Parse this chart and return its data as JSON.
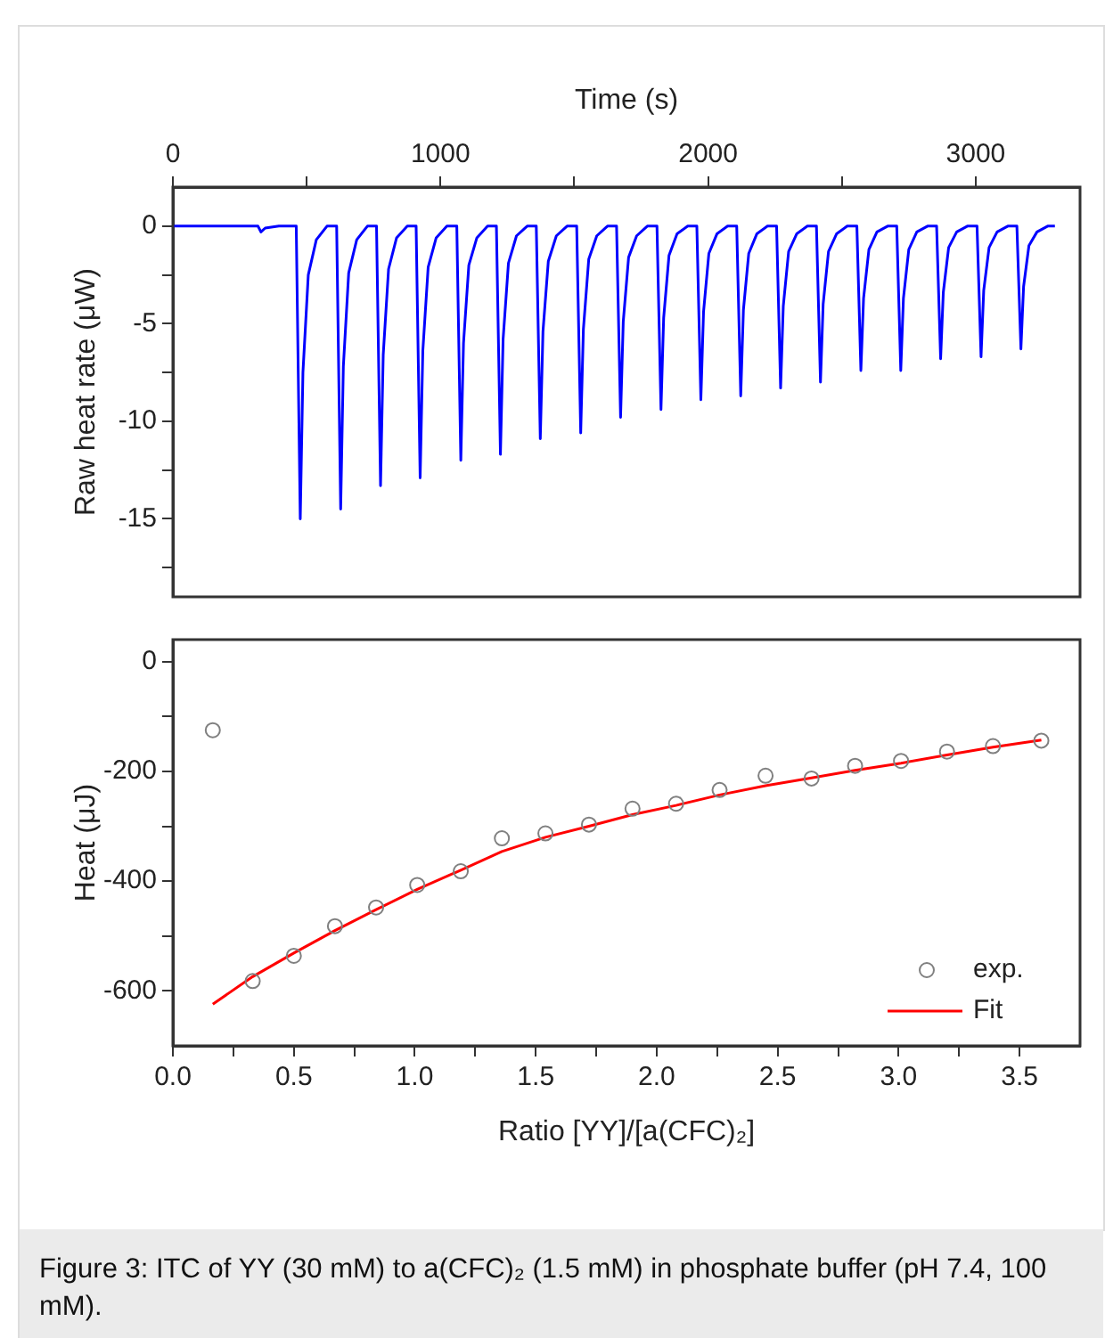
{
  "chart_data": [
    {
      "type": "line",
      "xlabel": "Time (s)",
      "ylabel": "Raw heat rate (μW)",
      "xlim": [
        0,
        3390
      ],
      "xticks": [
        0,
        {
          "value": 500,
          "label": null
        },
        1000,
        {
          "value": 1500,
          "label": null
        },
        2000,
        {
          "value": 2500,
          "label": null
        },
        3000
      ],
      "ylim": [
        -19,
        2
      ],
      "yticks": [
        0,
        {
          "value": -2.5,
          "label": null
        },
        -5,
        {
          "value": -7.5,
          "label": null
        },
        -10,
        {
          "value": -12.5,
          "label": null
        },
        -15,
        {
          "value": -17.5,
          "label": null
        }
      ],
      "grid": false,
      "legend": false,
      "series": [
        {
          "color": "#0000ff",
          "x": [
            0,
            318,
            329,
            345,
            396,
            461,
            476,
            486,
            506,
            536,
            576,
            612,
            627,
            637,
            657,
            687,
            727,
            761,
            776,
            786,
            806,
            836,
            876,
            909,
            924,
            934,
            954,
            984,
            1024,
            1061,
            1076,
            1086,
            1106,
            1136,
            1176,
            1209,
            1224,
            1234,
            1254,
            1284,
            1324,
            1358,
            1373,
            1383,
            1403,
            1433,
            1473,
            1509,
            1524,
            1534,
            1554,
            1584,
            1624,
            1658,
            1673,
            1683,
            1703,
            1733,
            1773,
            1809,
            1824,
            1834,
            1854,
            1884,
            1924,
            1958,
            1973,
            1983,
            2003,
            2033,
            2073,
            2107,
            2122,
            2132,
            2152,
            2182,
            2222,
            2256,
            2271,
            2281,
            2301,
            2331,
            2371,
            2405,
            2420,
            2430,
            2450,
            2480,
            2520,
            2556,
            2571,
            2581,
            2601,
            2631,
            2671,
            2705,
            2720,
            2730,
            2750,
            2780,
            2820,
            2854,
            2869,
            2879,
            2899,
            2929,
            2969,
            3005,
            3020,
            3030,
            3050,
            3080,
            3120,
            3154,
            3169,
            3179,
            3199,
            3229,
            3269,
            3296
          ],
          "values": [
            0,
            0,
            -0.3,
            -0.1,
            0,
            0,
            -15.0,
            -7.5,
            -2.5,
            -0.7,
            0,
            0,
            -14.5,
            -7.2,
            -2.4,
            -0.7,
            0,
            0,
            -13.3,
            -6.6,
            -2.2,
            -0.6,
            0,
            0,
            -12.9,
            -6.4,
            -2.1,
            -0.6,
            0,
            0,
            -12.0,
            -6.0,
            -2.0,
            -0.6,
            0,
            0,
            -11.7,
            -5.8,
            -1.9,
            -0.5,
            0,
            0,
            -10.9,
            -5.4,
            -1.8,
            -0.5,
            0,
            0,
            -10.6,
            -5.3,
            -1.7,
            -0.5,
            0,
            0,
            -9.8,
            -4.9,
            -1.6,
            -0.5,
            0,
            0,
            -9.4,
            -4.7,
            -1.5,
            -0.4,
            0,
            0,
            -8.9,
            -4.4,
            -1.4,
            -0.4,
            0,
            0,
            -8.7,
            -4.3,
            -1.4,
            -0.4,
            0,
            0,
            -8.3,
            -4.1,
            -1.3,
            -0.4,
            0,
            0,
            -8.0,
            -4.0,
            -1.3,
            -0.4,
            0,
            0,
            -7.4,
            -3.7,
            -1.2,
            -0.3,
            0,
            0,
            -7.4,
            -3.7,
            -1.2,
            -0.3,
            0,
            0,
            -6.8,
            -3.4,
            -1.1,
            -0.3,
            0,
            0,
            -6.7,
            -3.3,
            -1.1,
            -0.3,
            0,
            0,
            -6.3,
            -3.1,
            -1.0,
            -0.3,
            0,
            0
          ]
        }
      ]
    },
    {
      "type": "scatter",
      "xlabel": "Ratio [YY]/[a(CFC)₂]",
      "ylabel": "Heat (μJ)",
      "xlim": [
        0,
        3.75
      ],
      "xticks": [
        {
          "value": 0,
          "label": "0.0"
        },
        {
          "value": 0.25,
          "label": null
        },
        0.5,
        {
          "value": 0.75,
          "label": null
        },
        {
          "value": 1,
          "label": "1.0"
        },
        {
          "value": 1.25,
          "label": null
        },
        1.5,
        {
          "value": 1.75,
          "label": null
        },
        {
          "value": 2,
          "label": "2.0"
        },
        {
          "value": 2.25,
          "label": null
        },
        2.5,
        {
          "value": 2.75,
          "label": null
        },
        {
          "value": 3,
          "label": "3.0"
        },
        {
          "value": 3.25,
          "label": null
        },
        3.5
      ],
      "ylim": [
        -700,
        40
      ],
      "yticks": [
        0,
        {
          "value": -100,
          "label": null
        },
        -200,
        {
          "value": -300,
          "label": null
        },
        -400,
        {
          "value": -500,
          "label": null
        },
        -600
      ],
      "grid": false,
      "legend": "bottom right",
      "series": [
        {
          "name": "exp.",
          "type": "scatter",
          "marker": "circle",
          "color": "#808080",
          "x": [
            0.165,
            0.33,
            0.5,
            0.67,
            0.84,
            1.01,
            1.19,
            1.36,
            1.54,
            1.72,
            1.9,
            2.08,
            2.26,
            2.45,
            2.64,
            2.82,
            3.01,
            3.2,
            3.39,
            3.59
          ],
          "values": [
            -125,
            -582,
            -536,
            -482,
            -448,
            -407,
            -382,
            -322,
            -313,
            -297,
            -268,
            -259,
            -234,
            -208,
            -213,
            -190,
            -181,
            -164,
            -154,
            -144
          ]
        },
        {
          "name": "Fit",
          "type": "line",
          "color": "#ff0000",
          "x": [
            0.165,
            0.33,
            0.5,
            0.67,
            0.84,
            1.01,
            1.19,
            1.36,
            1.54,
            1.72,
            1.9,
            2.08,
            2.26,
            2.45,
            2.64,
            2.82,
            3.01,
            3.2,
            3.39,
            3.59
          ],
          "values": [
            -624,
            -574,
            -531,
            -490,
            -452,
            -415,
            -380,
            -346,
            -320,
            -300,
            -279,
            -262,
            -243,
            -226,
            -212,
            -198,
            -185,
            -170,
            -156,
            -143
          ]
        }
      ],
      "annotations": [
        "Figure 3: ITC of YY (30 mM) to a(CFC)₂ (1.5 mM) in phosphate buffer (pH 7.4, 100 mM)."
      ]
    }
  ]
}
